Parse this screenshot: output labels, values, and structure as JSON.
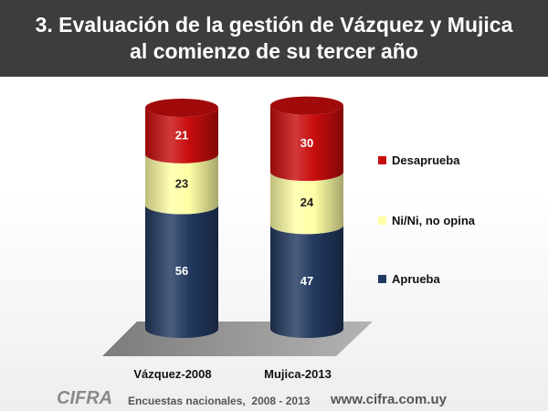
{
  "title": {
    "line1": "3. Evaluación de la gestión de Vázquez y Mujica",
    "line2": "al comienzo de su tercer año"
  },
  "chart_data": {
    "type": "bar",
    "stacked": true,
    "style": "3d-cylinder",
    "categories": [
      "Vázquez-2008",
      "Mujica-2013"
    ],
    "series": [
      {
        "name": "Aprueba",
        "values": [
          56,
          47
        ],
        "color": "#22395f"
      },
      {
        "name": "Ni/Ni, no opina",
        "values": [
          23,
          24
        ],
        "color": "#ffffa6"
      },
      {
        "name": "Desaprueba",
        "values": [
          21,
          30
        ],
        "color": "#c80d0d"
      }
    ],
    "ylim": [
      0,
      100
    ],
    "legend_position": "right",
    "legend_order": [
      "Desaprueba",
      "Ni/Ni, no opina",
      "Aprueba"
    ],
    "grid": false
  },
  "footer": {
    "logo": "CIFRA",
    "source": "Encuestas nacionales,  2008 - 2013",
    "url": "www.cifra.com.uy"
  }
}
